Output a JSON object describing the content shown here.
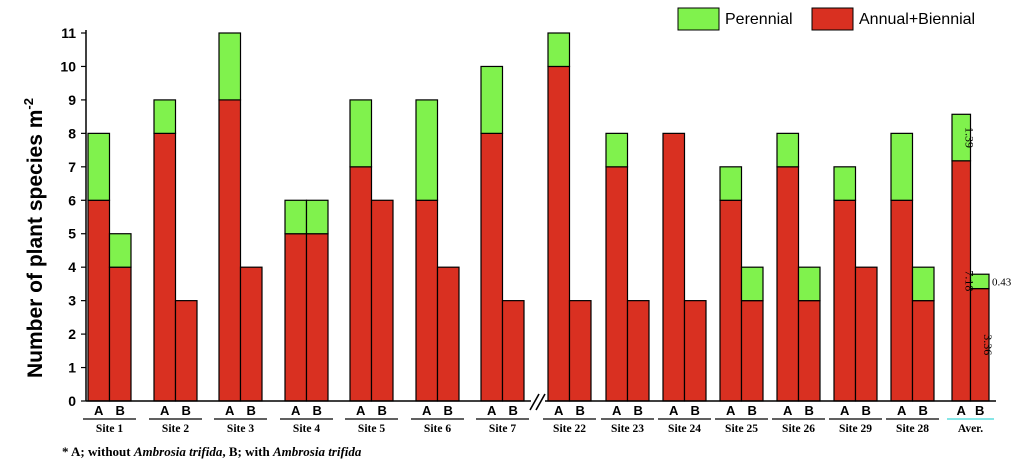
{
  "chart_data": {
    "type": "bar",
    "stacked": true,
    "ylabel": "Number of plant species m",
    "ylabel_superscript": "-2",
    "ylim": [
      0,
      11
    ],
    "yticks": [
      0,
      1,
      2,
      3,
      4,
      5,
      6,
      7,
      8,
      9,
      10,
      11
    ],
    "bar_labels": [
      "A",
      "B"
    ],
    "axis_break_between": [
      "Site 7",
      "Site 22"
    ],
    "series": [
      {
        "name": "Annual+Biennial",
        "color": "#d93021"
      },
      {
        "name": "Perennial",
        "color": "#80f24d"
      }
    ],
    "legend_position": "top-right",
    "groups": [
      {
        "site": "Site 1",
        "A": {
          "annual": 6,
          "perennial": 2
        },
        "B": {
          "annual": 4,
          "perennial": 1
        }
      },
      {
        "site": "Site 2",
        "A": {
          "annual": 8,
          "perennial": 1
        },
        "B": {
          "annual": 3,
          "perennial": 0
        }
      },
      {
        "site": "Site 3",
        "A": {
          "annual": 9,
          "perennial": 2
        },
        "B": {
          "annual": 4,
          "perennial": 0
        }
      },
      {
        "site": "Site 4",
        "A": {
          "annual": 5,
          "perennial": 1
        },
        "B": {
          "annual": 5,
          "perennial": 1
        }
      },
      {
        "site": "Site 5",
        "A": {
          "annual": 7,
          "perennial": 2
        },
        "B": {
          "annual": 6,
          "perennial": 0
        }
      },
      {
        "site": "Site 6",
        "A": {
          "annual": 6,
          "perennial": 3
        },
        "B": {
          "annual": 4,
          "perennial": 0
        }
      },
      {
        "site": "Site 7",
        "A": {
          "annual": 8,
          "perennial": 2
        },
        "B": {
          "annual": 3,
          "perennial": 0
        }
      },
      {
        "site": "Site 22",
        "A": {
          "annual": 10,
          "perennial": 1
        },
        "B": {
          "annual": 3,
          "perennial": 0
        }
      },
      {
        "site": "Site 23",
        "A": {
          "annual": 7,
          "perennial": 1
        },
        "B": {
          "annual": 3,
          "perennial": 0
        }
      },
      {
        "site": "Site 24",
        "A": {
          "annual": 8,
          "perennial": 0
        },
        "B": {
          "annual": 3,
          "perennial": 0
        }
      },
      {
        "site": "Site 25",
        "A": {
          "annual": 6,
          "perennial": 1
        },
        "B": {
          "annual": 3,
          "perennial": 1
        }
      },
      {
        "site": "Site 26",
        "A": {
          "annual": 7,
          "perennial": 1
        },
        "B": {
          "annual": 3,
          "perennial": 1
        }
      },
      {
        "site": "Site 29",
        "A": {
          "annual": 6,
          "perennial": 1
        },
        "B": {
          "annual": 4,
          "perennial": 0
        }
      },
      {
        "site": "Site 28",
        "A": {
          "annual": 6,
          "perennial": 2
        },
        "B": {
          "annual": 3,
          "perennial": 1
        }
      },
      {
        "site": "Aver.",
        "A": {
          "annual": 7.18,
          "perennial": 1.39
        },
        "B": {
          "annual": 3.36,
          "perennial": 0.43
        }
      }
    ],
    "value_annotations": [
      {
        "group": "Aver.",
        "bar": "A",
        "segment": "annual",
        "text": "7.18",
        "rotated": true
      },
      {
        "group": "Aver.",
        "bar": "A",
        "segment": "perennial",
        "text": "1.39",
        "rotated": true
      },
      {
        "group": "Aver.",
        "bar": "B",
        "segment": "annual",
        "text": "3.36",
        "rotated": true
      },
      {
        "group": "Aver.",
        "bar": "B",
        "segment": "perennial",
        "text": "0.43",
        "rotated": false,
        "placement": "outside-right"
      }
    ]
  },
  "footnote": {
    "prefix": "* A; without ",
    "species_1": "Ambrosia trifida",
    "middle": ",  B; with ",
    "species_2": "Ambrosia trifida"
  }
}
